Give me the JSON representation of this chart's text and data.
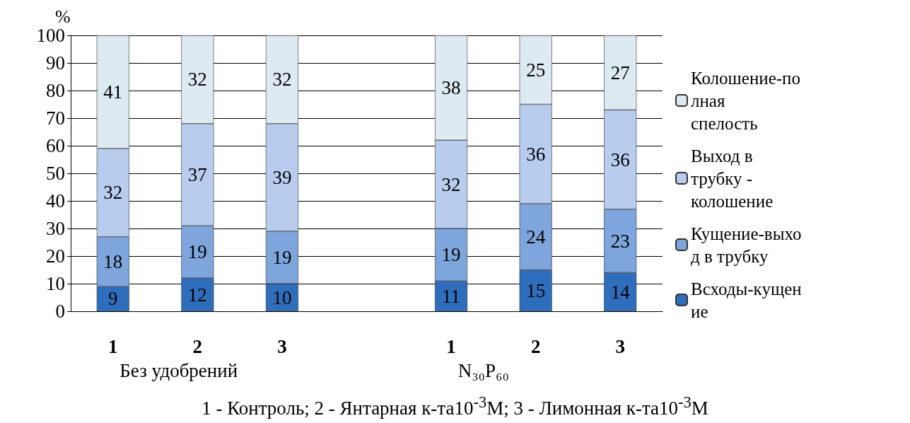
{
  "chart_data": {
    "type": "bar",
    "stacked": true,
    "ylabel": "%",
    "categories": [
      "1",
      "2",
      "3",
      null,
      "1",
      "2",
      "3"
    ],
    "series": [
      {
        "name": "Всходы-кущение",
        "color": "#2f6ebd",
        "values": [
          9,
          12,
          10,
          null,
          11,
          15,
          14
        ]
      },
      {
        "name": "Кущение-выход в трубку",
        "color": "#7ea5dc",
        "values": [
          18,
          19,
          19,
          null,
          19,
          24,
          23
        ]
      },
      {
        "name": "Выход в трубку - колошение",
        "color": "#b8cdee",
        "values": [
          32,
          37,
          39,
          null,
          32,
          36,
          36
        ]
      },
      {
        "name": "Колошение-полная спелость",
        "color": "#ddeaf1",
        "values": [
          41,
          32,
          32,
          null,
          38,
          25,
          27
        ]
      }
    ],
    "ylim": [
      0,
      100
    ],
    "yticks": [
      0,
      10,
      20,
      30,
      40,
      50,
      60,
      70,
      80,
      90,
      100
    ],
    "grid": "y",
    "legend": "right",
    "data_labels": true,
    "annotations": [
      "Без удобрений",
      "N₃₀P₆₀",
      "1 - Контроль; 2 - Янтарная к-та10$^{-3}$М; 3 - Лимонная к-та10$^{-3}$М"
    ]
  }
}
